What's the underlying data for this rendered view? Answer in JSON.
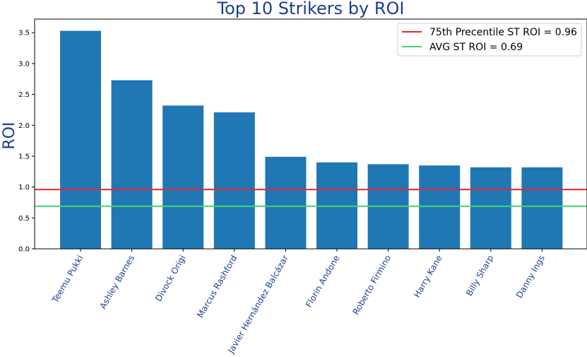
{
  "chart_data": {
    "type": "bar",
    "title": "Top 10 Strikers by ROI",
    "xlabel": "",
    "ylabel": "ROI",
    "ylim": [
      0,
      3.72
    ],
    "yticks": [
      "0.0",
      "0.5",
      "1.0",
      "1.5",
      "2.0",
      "2.5",
      "3.0",
      "3.5"
    ],
    "categories": [
      "Teemu Pukki",
      "Ashley Barnes",
      "Divock Origi",
      "Marcus Rashford",
      "Javier Hernández Balcázar",
      "Florin Andone",
      "Roberto Firmino",
      "Harry Kane",
      "Billy Sharp",
      "Danny Ings"
    ],
    "values": [
      3.53,
      2.73,
      2.32,
      2.21,
      1.49,
      1.4,
      1.37,
      1.35,
      1.32,
      1.32
    ],
    "bar_color": "#1f77b4",
    "grid": false,
    "legend_position": "top-right",
    "reference_lines": [
      {
        "label": "75th Precentile ST ROI = 0.96",
        "value": 0.96,
        "color": "#e8282b"
      },
      {
        "label": "AVG ST ROI = 0.69",
        "value": 0.69,
        "color": "#44d46e"
      }
    ]
  }
}
